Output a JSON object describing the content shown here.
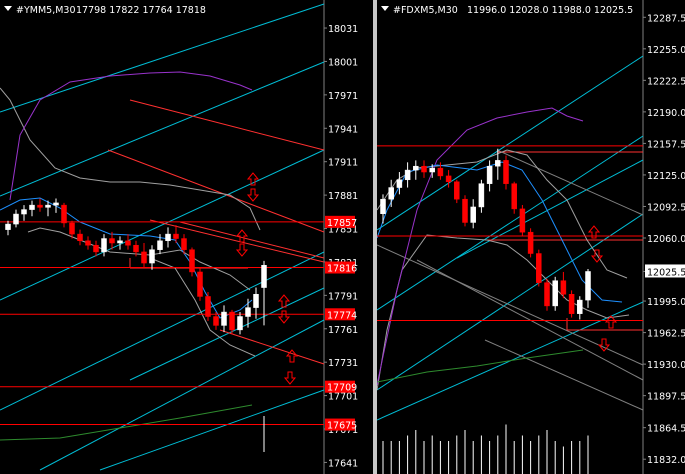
{
  "colors": {
    "background": "#000000",
    "axis_text": "#ffffff",
    "title_text": "#ffffff",
    "bull_candle": "#ffffff",
    "bear_candle": "#ff0000",
    "level_line": "#ff0000",
    "channel": "#00bcd4",
    "bollinger": "#a0a0a0",
    "ma_fast": "#1e90ff",
    "ma_purple": "#9933cc",
    "ma_green": "#2e8b2e",
    "arrow": "#ff0000",
    "volume": "#ffffff",
    "divider": "#c8c8c8"
  },
  "chart_data": [
    {
      "type": "candlestick",
      "symbol": "#YMM5,M30",
      "header_values": "17798 17822 17764 17818",
      "ylim": [
        17636,
        18040
      ],
      "y_ticks": [
        "18031",
        "18001",
        "17971",
        "17941",
        "17911",
        "17881",
        "17851",
        "17821",
        "17791",
        "17761",
        "17731",
        "17701",
        "17671",
        "17641"
      ],
      "price_labels": [
        {
          "text": "17857",
          "value": 17857
        },
        {
          "text": "17816",
          "value": 17816
        },
        {
          "text": "17774",
          "value": 17774
        },
        {
          "text": "17709",
          "value": 17709
        },
        {
          "text": "17675",
          "value": 17675
        }
      ],
      "candles": [
        [
          17850,
          17858,
          17845,
          17855
        ],
        [
          17855,
          17868,
          17852,
          17864
        ],
        [
          17864,
          17872,
          17858,
          17868
        ],
        [
          17868,
          17876,
          17862,
          17872
        ],
        [
          17872,
          17878,
          17866,
          17870
        ],
        [
          17870,
          17876,
          17862,
          17872
        ],
        [
          17872,
          17878,
          17865,
          17874
        ],
        [
          17872,
          17874,
          17852,
          17856
        ],
        [
          17856,
          17858,
          17842,
          17846
        ],
        [
          17846,
          17850,
          17836,
          17840
        ],
        [
          17840,
          17844,
          17832,
          17836
        ],
        [
          17836,
          17840,
          17826,
          17830
        ],
        [
          17830,
          17846,
          17826,
          17842
        ],
        [
          17842,
          17848,
          17832,
          17838
        ],
        [
          17838,
          17844,
          17832,
          17840
        ],
        [
          17840,
          17846,
          17832,
          17836
        ],
        [
          17836,
          17840,
          17826,
          17830
        ],
        [
          17830,
          17838,
          17816,
          17820
        ],
        [
          17820,
          17836,
          17814,
          17832
        ],
        [
          17832,
          17846,
          17828,
          17840
        ],
        [
          17840,
          17852,
          17834,
          17846
        ],
        [
          17846,
          17854,
          17838,
          17842
        ],
        [
          17842,
          17846,
          17828,
          17832
        ],
        [
          17832,
          17834,
          17808,
          17812
        ],
        [
          17812,
          17816,
          17786,
          17790
        ],
        [
          17790,
          17794,
          17768,
          17772
        ],
        [
          17772,
          17776,
          17760,
          17764
        ],
        [
          17764,
          17782,
          17758,
          17776
        ],
        [
          17776,
          17778,
          17756,
          17760
        ],
        [
          17760,
          17776,
          17756,
          17772
        ],
        [
          17772,
          17788,
          17762,
          17780
        ],
        [
          17780,
          17798,
          17770,
          17792
        ],
        [
          17798,
          17822,
          17764,
          17818
        ]
      ],
      "volume": [
        0,
        0,
        0,
        0,
        0,
        0,
        0,
        0,
        0,
        0,
        0,
        0,
        0,
        0,
        0,
        0,
        0,
        0,
        0,
        0,
        0,
        0,
        0,
        0,
        0,
        0,
        0,
        0,
        0,
        0,
        0,
        0,
        1
      ],
      "volume_spike_index": 32,
      "horizontal_levels": [
        17857,
        17816,
        17774,
        17709,
        17675
      ],
      "grid": false
    },
    {
      "type": "candlestick",
      "symbol": "#FDXM5,M30",
      "header_values": "11996.0 12028.0 11988.0 12025.5",
      "ylim": [
        11825,
        12295
      ],
      "y_ticks": [
        "12287.5",
        "12255.0",
        "12222.5",
        "12190.0",
        "12157.5",
        "12125.0",
        "12092.5",
        "12060.0",
        "12025.5",
        "11995.0",
        "11962.5",
        "11930.0",
        "11897.5",
        "11864.5",
        "11832.0"
      ],
      "highlight_tick": "12025.5",
      "candles": [
        [
          12085,
          12105,
          12075,
          12100
        ],
        [
          12100,
          12120,
          12092,
          12112
        ],
        [
          12112,
          12128,
          12105,
          12120
        ],
        [
          12120,
          12138,
          12112,
          12130
        ],
        [
          12130,
          12140,
          12120,
          12134
        ],
        [
          12134,
          12140,
          12122,
          12128
        ],
        [
          12128,
          12136,
          12122,
          12132
        ],
        [
          12132,
          12138,
          12120,
          12124
        ],
        [
          12124,
          12130,
          12112,
          12118
        ],
        [
          12118,
          12120,
          12096,
          12100
        ],
        [
          12100,
          12104,
          12072,
          12076
        ],
        [
          12076,
          12100,
          12070,
          12092
        ],
        [
          12092,
          12120,
          12086,
          12116
        ],
        [
          12116,
          12140,
          12108,
          12134
        ],
        [
          12134,
          12152,
          12120,
          12140
        ],
        [
          12140,
          12145,
          12110,
          12116
        ],
        [
          12116,
          12118,
          12085,
          12090
        ],
        [
          12090,
          12094,
          12062,
          12066
        ],
        [
          12066,
          12070,
          12040,
          12044
        ],
        [
          12044,
          12048,
          12010,
          12014
        ],
        [
          12014,
          12018,
          11985,
          11990
        ],
        [
          11990,
          12020,
          11985,
          12016
        ],
        [
          12016,
          12025,
          11998,
          12002
        ],
        [
          12002,
          12006,
          11978,
          11982
        ],
        [
          11982,
          12000,
          11976,
          11996
        ],
        [
          11996,
          12028,
          11988,
          12025.5
        ]
      ],
      "volume": [
        0.6,
        0.6,
        0.6,
        0.7,
        0.8,
        0.6,
        0.7,
        0.6,
        0.6,
        0.7,
        0.8,
        0.6,
        0.7,
        0.6,
        0.7,
        0.9,
        0.6,
        0.7,
        0.6,
        0.7,
        0.8,
        0.6,
        0.5,
        0.6,
        0.6,
        0.7
      ],
      "horizontal_levels": [
        12155,
        12062,
        11975
      ],
      "grid": false
    }
  ]
}
